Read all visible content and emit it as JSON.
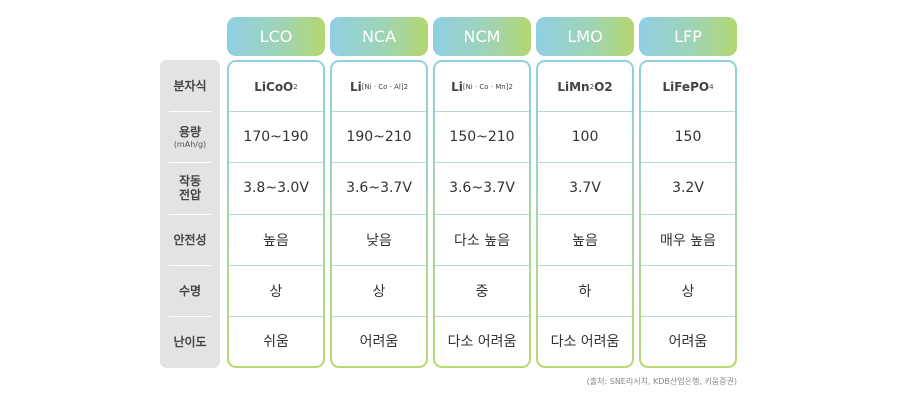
{
  "columns": [
    {
      "name": "LCO",
      "formula": {
        "base": "LiCoO",
        "sub": "2",
        "tail": ""
      },
      "capacity": "170~190",
      "voltage": "3.8~3.0V",
      "safety": "높음",
      "lifespan": "상",
      "difficulty": "쉬움"
    },
    {
      "name": "NCA",
      "formula": {
        "base": "Li",
        "sub": "[Ni · Co · Al]2",
        "tail": ""
      },
      "capacity": "190~210",
      "voltage": "3.6~3.7V",
      "safety": "낮음",
      "lifespan": "상",
      "difficulty": "어려움"
    },
    {
      "name": "NCM",
      "formula": {
        "base": "Li",
        "sub": "[Ni · Co · Mn]2",
        "tail": ""
      },
      "capacity": "150~210",
      "voltage": "3.6~3.7V",
      "safety": "다소 높음",
      "lifespan": "중",
      "difficulty": "다소 어려움"
    },
    {
      "name": "LMO",
      "formula": {
        "base": "LiMn",
        "sub": "2",
        "tail": "O2"
      },
      "capacity": "100",
      "voltage": "3.7V",
      "safety": "높음",
      "lifespan": "하",
      "difficulty": "다소 어려움"
    },
    {
      "name": "LFP",
      "formula": {
        "base": "LiFePO",
        "sub": "4",
        "tail": ""
      },
      "capacity": "150",
      "voltage": "3.2V",
      "safety": "매우 높음",
      "lifespan": "상",
      "difficulty": "어려움"
    }
  ],
  "row_labels": {
    "formula": "분자식",
    "capacity": "용량",
    "capacity_unit": "(mAh/g)",
    "voltage_line1": "작동",
    "voltage_line2": "전압",
    "safety": "안전성",
    "lifespan": "수명",
    "difficulty": "난이도"
  },
  "source": "(출처: SNE리서치, KDB산업은행, 키움증권)"
}
